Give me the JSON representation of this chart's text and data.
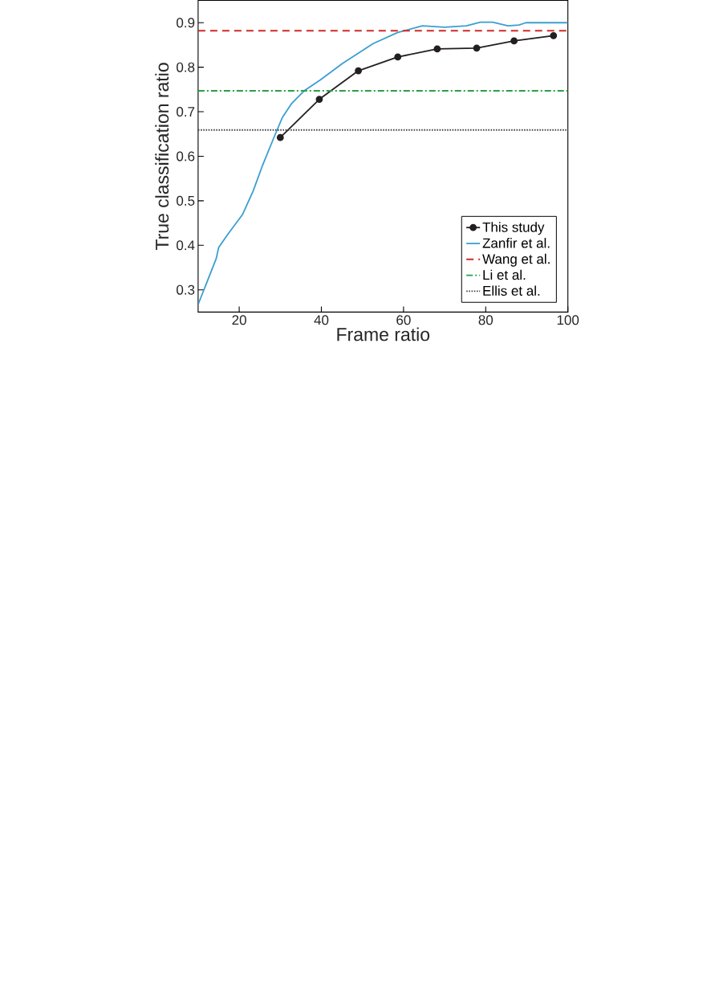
{
  "chart_data": {
    "type": "line",
    "xlabel": "Frame ratio",
    "ylabel": "True classification ratio",
    "xlim": [
      10,
      100
    ],
    "ylim": [
      0.25,
      0.95
    ],
    "xticks": [
      20,
      40,
      60,
      80,
      100
    ],
    "yticks": [
      0.3,
      0.4,
      0.5,
      0.6,
      0.7,
      0.8,
      0.9
    ],
    "legend": "bottom right",
    "series": [
      {
        "name": "This study",
        "color": "#231f20",
        "marker": "circle",
        "x": [
          30,
          39.5,
          49,
          58.6,
          68.2,
          77.8,
          86.9,
          96.5
        ],
        "values": [
          0.642,
          0.728,
          0.792,
          0.823,
          0.841,
          0.843,
          0.859,
          0.871
        ]
      },
      {
        "name": "Zanfir et al.",
        "color": "#3a9fd0",
        "marker": "none",
        "x": [
          10,
          14.4,
          15,
          17.1,
          20.8,
          23.4,
          25.7,
          28.4,
          30.5,
          32.8,
          35.8,
          39.8,
          45.2,
          52.6,
          58.6,
          64.6,
          70,
          75.3,
          78.7,
          81.7,
          85.4,
          88.1,
          89.8,
          100
        ],
        "values": [
          0.267,
          0.37,
          0.395,
          0.423,
          0.469,
          0.522,
          0.58,
          0.641,
          0.687,
          0.719,
          0.747,
          0.772,
          0.809,
          0.853,
          0.878,
          0.893,
          0.89,
          0.893,
          0.901,
          0.901,
          0.893,
          0.895,
          0.9,
          0.9
        ]
      }
    ],
    "ref_lines": [
      {
        "axis": "y",
        "value": 0.882,
        "label": "Wang et al.",
        "color": "#d02a27",
        "line_style": "dashed"
      },
      {
        "axis": "y",
        "value": 0.747,
        "label": "Li et al.",
        "color": "#2a9f45",
        "line_style": "dashdot"
      },
      {
        "axis": "y",
        "value": 0.659,
        "label": "Ellis et al.",
        "color": "#444444",
        "line_style": "dotted"
      }
    ]
  }
}
